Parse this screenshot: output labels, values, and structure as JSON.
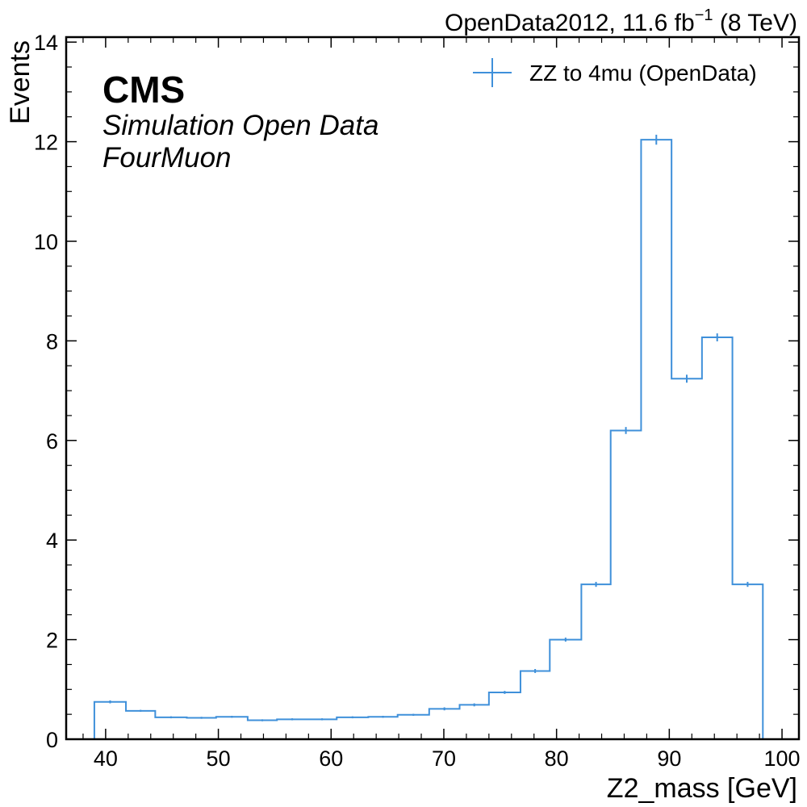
{
  "chart_data": {
    "type": "histogram",
    "experiment_label": "CMS",
    "sublabel_1": "Simulation Open Data",
    "sublabel_2": "FourMuon",
    "lumi_label": {
      "prefix": "OpenData2012, 11.6 fb",
      "superscript": "−1",
      "suffix": " (8 TeV)"
    },
    "xlabel": "Z2_mass [GeV]",
    "ylabel": "Events",
    "xlim": [
      36.5,
      101.5
    ],
    "ylim": [
      0,
      14.1
    ],
    "x_ticks": [
      "40",
      "50",
      "60",
      "70",
      "80",
      "90",
      "100"
    ],
    "y_ticks": [
      "0",
      "2",
      "4",
      "6",
      "8",
      "10",
      "12",
      "14"
    ],
    "legend_position": "top-right",
    "series": [
      {
        "name": "ZZ to 4mu (OpenData)",
        "color": "#3f90da",
        "bin_edges": [
          39.0,
          41.8,
          44.4,
          47.2,
          49.8,
          52.6,
          55.2,
          57.9,
          60.5,
          63.3,
          65.9,
          68.7,
          71.4,
          74.0,
          76.8,
          79.4,
          82.2,
          84.8,
          87.5,
          90.2,
          92.9,
          95.6,
          98.3
        ],
        "values": [
          0.75,
          0.57,
          0.44,
          0.43,
          0.45,
          0.38,
          0.4,
          0.4,
          0.44,
          0.45,
          0.49,
          0.61,
          0.69,
          0.94,
          1.37,
          2.0,
          3.11,
          6.2,
          12.04,
          7.24,
          8.07,
          3.11
        ],
        "errors": [
          0.03,
          0.02,
          0.02,
          0.02,
          0.02,
          0.02,
          0.02,
          0.02,
          0.02,
          0.02,
          0.02,
          0.03,
          0.03,
          0.03,
          0.04,
          0.04,
          0.05,
          0.07,
          0.1,
          0.08,
          0.08,
          0.05
        ]
      }
    ]
  }
}
